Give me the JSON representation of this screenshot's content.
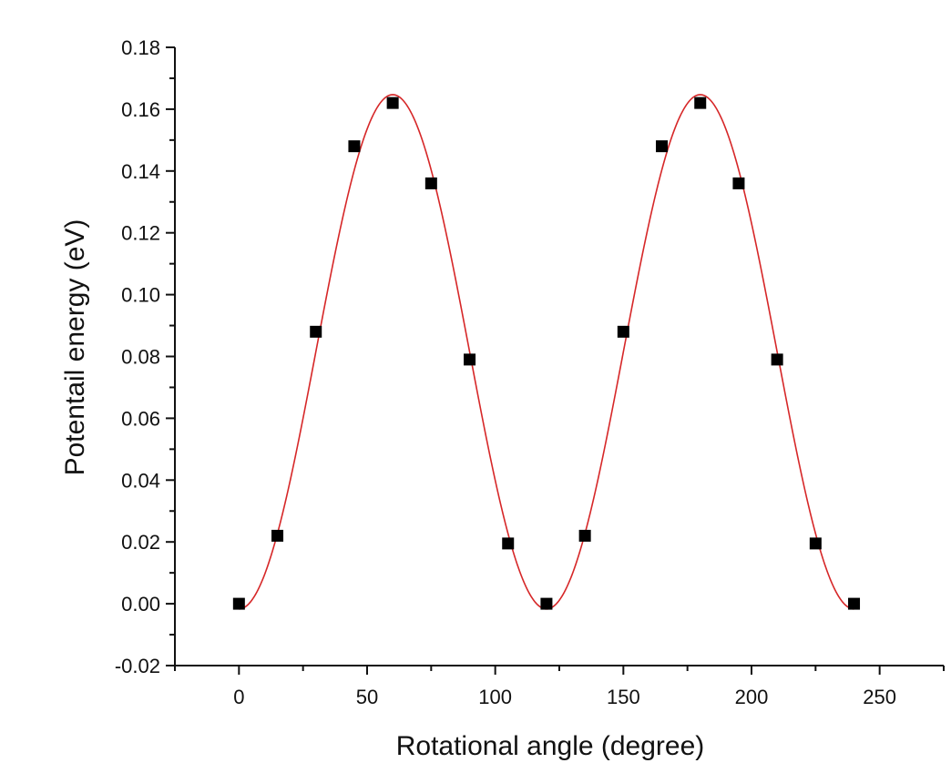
{
  "chart_data": {
    "type": "scatter",
    "xlabel": "Rotational angle (degree)",
    "ylabel": "Potentail energy (eV)",
    "xlim": [
      -25,
      275
    ],
    "ylim": [
      -0.02,
      0.18
    ],
    "xticks": [
      0,
      50,
      100,
      150,
      200,
      250
    ],
    "xtick_labels": [
      "0",
      "50",
      "100",
      "150",
      "200",
      "250"
    ],
    "yticks": [
      -0.02,
      0.0,
      0.02,
      0.04,
      0.06,
      0.08,
      0.1,
      0.12,
      0.14,
      0.16,
      0.18
    ],
    "ytick_labels": [
      "-0.02",
      "0.00",
      "0.02",
      "0.04",
      "0.06",
      "0.08",
      "0.10",
      "0.12",
      "0.14",
      "0.16",
      "0.18"
    ],
    "grid": false,
    "series": [
      {
        "type": "scatter",
        "marker": "square",
        "color": "#000000",
        "x": [
          0,
          15,
          30,
          45,
          60,
          75,
          90,
          105,
          120,
          135,
          150,
          165,
          180,
          195,
          210,
          225,
          240
        ],
        "y": [
          0.0,
          0.022,
          0.088,
          0.148,
          0.162,
          0.136,
          0.079,
          0.0195,
          0.0,
          0.022,
          0.088,
          0.148,
          0.162,
          0.136,
          0.079,
          0.0195,
          0.0
        ]
      },
      {
        "type": "line",
        "color": "#d62728",
        "fit": "cosine",
        "params": {
          "offset": 0.0815,
          "amplitude": 0.0832,
          "period": 120
        },
        "x_range": [
          0,
          240
        ]
      }
    ]
  }
}
